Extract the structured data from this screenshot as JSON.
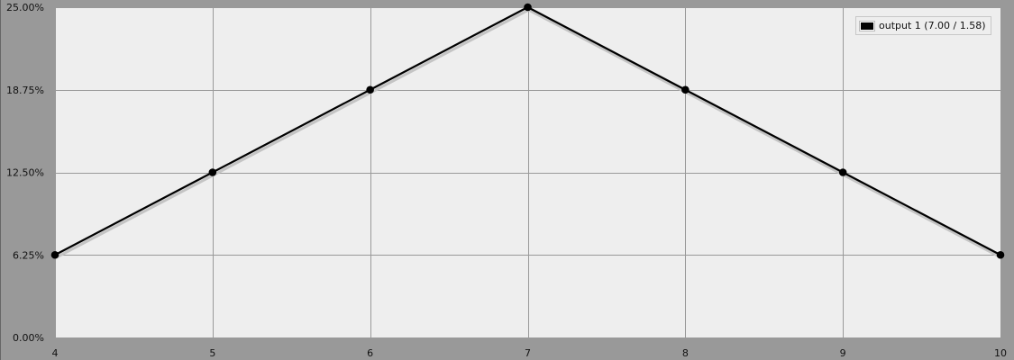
{
  "chart_data": {
    "type": "line",
    "x": [
      4,
      5,
      6,
      7,
      8,
      9,
      10
    ],
    "series": [
      {
        "name": "output 1 (7.00 / 1.58)",
        "values": [
          6.25,
          12.5,
          18.75,
          25.0,
          18.75,
          12.5,
          6.25
        ],
        "color": "#000000"
      }
    ],
    "xlim": [
      4,
      10
    ],
    "ylim": [
      0,
      25
    ],
    "x_ticks": [
      "4",
      "5",
      "6",
      "7",
      "8",
      "9",
      "10"
    ],
    "y_ticks": [
      "0.00%",
      "6.25%",
      "12.50%",
      "18.75%",
      "25.00%"
    ],
    "grid": true,
    "legend_position": "top-right",
    "colors": {
      "plot_bg": "#eeeeee",
      "page_bg": "#999999",
      "grid": "#999999",
      "line": "#000000"
    }
  }
}
